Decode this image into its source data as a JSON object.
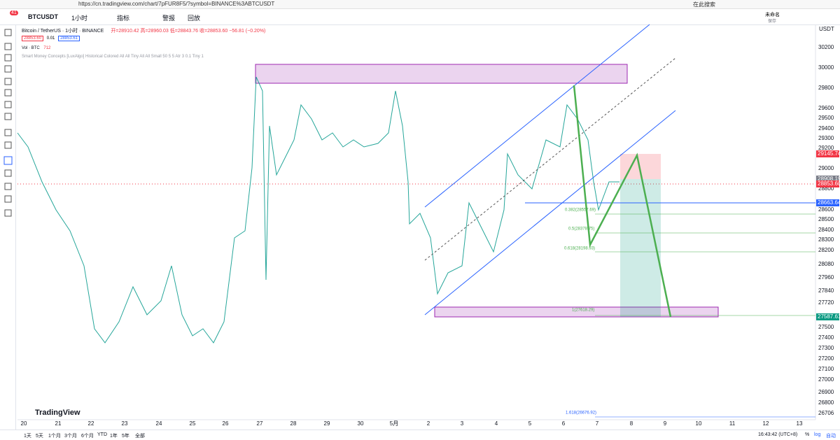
{
  "browser": {
    "url": "https://cn.tradingview.com/chart/7pFUR8F5/?symbol=BINANCE%3ABTCUSDT",
    "search": "在此搜索"
  },
  "toolbar": {
    "badge": "41",
    "symbol": "BTCUSDT",
    "interval": "1小时",
    "indicators": "指标",
    "alert": "警报",
    "replay": "回放",
    "layout_name": "未命名",
    "save": "保存"
  },
  "legend": {
    "title": "Bitcoin / TetherUS · 1小时 · BINANCE",
    "ohlc": "开=28910.42 高=28960.03 低=28843.76 收=28853.60 −56.81 (−0.20%)",
    "bid": "28853.60",
    "spread": "0.01",
    "ask": "28853.61",
    "volume": "Vol · BTC",
    "volume_value": "712",
    "indicator": "Smart Money Concepts [LuxAlgo] Historical Colored All All Tiny All All Small 50 5 5 Atr 3 0.1 Tiny 1"
  },
  "price_axis": {
    "currency": "USDT",
    "ticks": [
      "30200",
      "30000",
      "29800",
      "29600",
      "29500",
      "29400",
      "29300",
      "29200",
      "29000",
      "28800",
      "28600",
      "28500",
      "28400",
      "28300",
      "28200",
      "28080",
      "27960",
      "27840",
      "27720",
      "27500",
      "27400",
      "27300",
      "27200",
      "27100",
      "27000",
      "26900",
      "26800",
      "26706"
    ]
  },
  "price_tags": [
    {
      "label": "29145.74",
      "color": "#f23645"
    },
    {
      "label": "28908.19",
      "color": "#787b86"
    },
    {
      "label": "28853.60",
      "color": "#f23645"
    },
    {
      "label": "28663.64",
      "color": "#2962ff"
    },
    {
      "label": "27587.61",
      "color": "#089981"
    }
  ],
  "time_axis": {
    "labels": [
      "20",
      "21",
      "22",
      "23",
      "24",
      "25",
      "26",
      "27",
      "28",
      "29",
      "30",
      "5月",
      "2",
      "3",
      "4",
      "5",
      "6",
      "7",
      "8",
      "9",
      "10",
      "11",
      "12",
      "13"
    ]
  },
  "fib_labels": [
    "0.382(28557.69)",
    "0.5(28378.75)",
    "0.618(28198.93)",
    "1(27618.29)",
    "1.618(26676.92)"
  ],
  "watermark": "TradingView",
  "bottom_bar": {
    "ranges": [
      "1天",
      "5天",
      "1个月",
      "3个月",
      "6个月",
      "YTD",
      "1年",
      "5年",
      "全部"
    ],
    "clock": "16:43:42 (UTC+8)",
    "percent": "%",
    "log": "log",
    "auto": "自动"
  }
}
